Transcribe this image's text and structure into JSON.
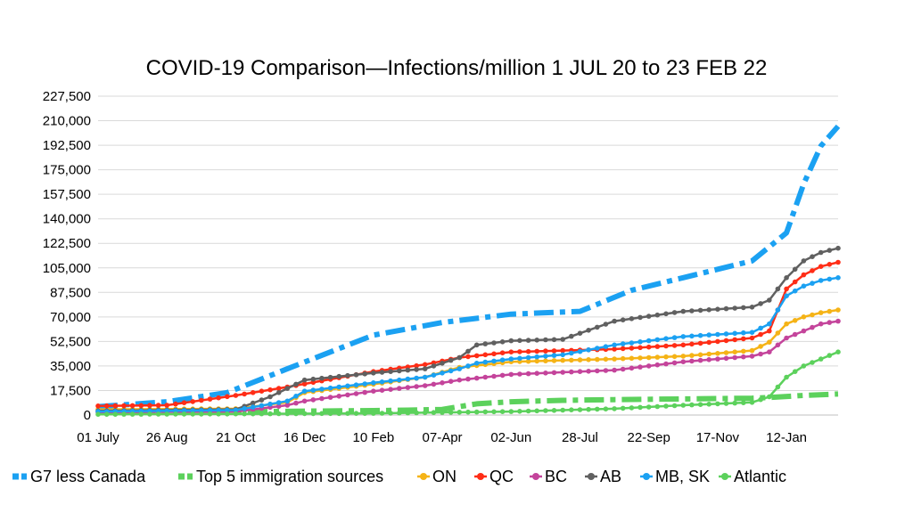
{
  "chart_data": {
    "type": "line",
    "title": "COVID-19 Comparison—Infections/million 1 JUL 20 to 23 FEB 22",
    "xlabel": "",
    "ylabel": "",
    "x_ticks": [
      "01 July",
      "26 Aug",
      "21 Oct",
      "16 Dec",
      "10 Feb",
      "07-Apr",
      "02-Jun",
      "28-Jul",
      "22-Sep",
      "17-Nov",
      "12-Jan"
    ],
    "x_range_days": [
      0,
      602
    ],
    "y_ticks": [
      "0",
      "17,500",
      "35,000",
      "52,500",
      "70,000",
      "87,500",
      "105,000",
      "122,500",
      "140,000",
      "157,500",
      "175,000",
      "192,500",
      "210,000",
      "227,500"
    ],
    "ylim": [
      0,
      227500
    ],
    "grid": true,
    "legend_position": "bottom",
    "series": [
      {
        "name": "G7 less Canada",
        "color": "#1ba1f2",
        "style": "dash-dot-thick",
        "x": [
          0,
          56,
          105,
          154,
          224,
          280,
          336,
          392,
          434,
          476,
          532,
          546,
          560,
          574,
          588,
          602
        ],
        "y": [
          6000,
          9500,
          16000,
          33000,
          57000,
          66000,
          72000,
          74000,
          89000,
          98000,
          110000,
          120000,
          130000,
          165000,
          192000,
          206000
        ]
      },
      {
        "name": "Top 5 immigration sources",
        "color": "#5cd15c",
        "style": "dash-dot-thick",
        "x": [
          0,
          112,
          168,
          224,
          252,
          280,
          308,
          336,
          378,
          420,
          476,
          532,
          546,
          574,
          602
        ],
        "y": [
          2000,
          2200,
          2800,
          3200,
          3500,
          4000,
          8000,
          9500,
          10500,
          11000,
          11500,
          12000,
          12500,
          14000,
          15000
        ],
        "y_shift_note": ""
      },
      {
        "name": "ON",
        "color": "#f5b316",
        "style": "line-markers",
        "x": [
          0,
          112,
          154,
          168,
          224,
          266,
          294,
          336,
          420,
          476,
          532,
          546,
          560,
          574,
          588,
          602
        ],
        "y": [
          4000,
          4500,
          9000,
          16000,
          22000,
          27000,
          34000,
          38000,
          40000,
          42000,
          46000,
          52000,
          65000,
          70000,
          73000,
          75000
        ]
      },
      {
        "name": "QC",
        "color": "#ff2d16",
        "style": "line-markers",
        "x": [
          0,
          56,
          112,
          154,
          224,
          266,
          294,
          336,
          420,
          476,
          532,
          546,
          560,
          574,
          588,
          602
        ],
        "y": [
          6500,
          7000,
          14000,
          20000,
          31000,
          36000,
          41000,
          45000,
          47000,
          50000,
          55000,
          60000,
          90000,
          100000,
          106000,
          109000
        ]
      },
      {
        "name": "BC",
        "color": "#c4449b",
        "style": "line-markers",
        "x": [
          0,
          112,
          154,
          168,
          224,
          266,
          294,
          336,
          420,
          476,
          532,
          546,
          560,
          574,
          588,
          602
        ],
        "y": [
          2000,
          2500,
          7000,
          10000,
          17000,
          21000,
          25000,
          29000,
          32000,
          38000,
          42000,
          45000,
          55000,
          60000,
          65000,
          67000
        ]
      },
      {
        "name": "AB",
        "color": "#606060",
        "style": "line-markers",
        "x": [
          0,
          112,
          140,
          168,
          224,
          266,
          294,
          308,
          336,
          378,
          420,
          476,
          532,
          546,
          560,
          574,
          588,
          602
        ],
        "y": [
          3000,
          4000,
          13000,
          25000,
          30000,
          33000,
          41000,
          50000,
          53000,
          54000,
          67000,
          74000,
          77000,
          82000,
          98000,
          110000,
          116000,
          119000
        ]
      },
      {
        "name": "MB, SK",
        "color": "#1ba1f2",
        "style": "line-markers",
        "x": [
          0,
          112,
          154,
          168,
          224,
          266,
          294,
          308,
          336,
          378,
          420,
          476,
          532,
          546,
          560,
          574,
          588,
          602
        ],
        "y": [
          2500,
          3500,
          10000,
          17000,
          23000,
          27000,
          33000,
          37000,
          40000,
          43000,
          50000,
          56000,
          59000,
          65000,
          85000,
          92000,
          96000,
          98000
        ]
      },
      {
        "name": "Atlantic",
        "color": "#5cd15c",
        "style": "line-markers",
        "x": [
          0,
          112,
          224,
          336,
          420,
          476,
          532,
          546,
          560,
          574,
          588,
          602
        ],
        "y": [
          500,
          800,
          1200,
          2500,
          4500,
          7000,
          9000,
          13000,
          27000,
          35000,
          40000,
          45000
        ]
      }
    ]
  }
}
